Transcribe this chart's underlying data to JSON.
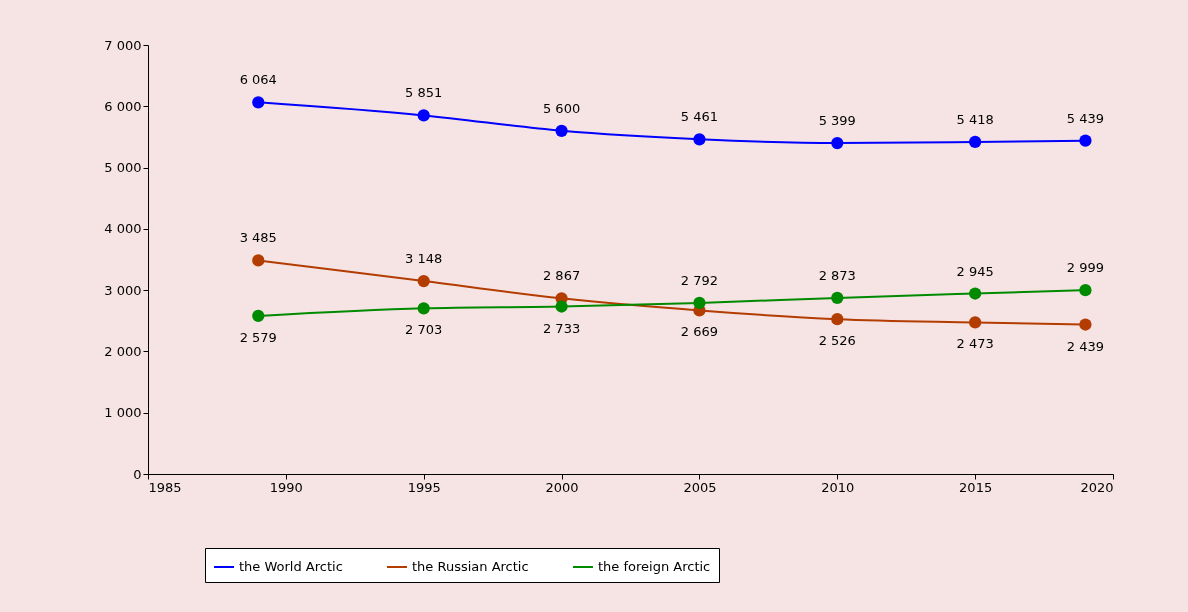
{
  "chart_data": {
    "type": "line",
    "x": [
      1989,
      1995,
      2000,
      2005,
      2010,
      2015,
      2019
    ],
    "series": [
      {
        "name": "the World Arctic",
        "color": "#0000ff",
        "values": [
          6064,
          5851,
          5600,
          5461,
          5399,
          5418,
          5439
        ],
        "value_labels": [
          "6 064",
          "5 851",
          "5 600",
          "5 461",
          "5 399",
          "5 418",
          "5 439"
        ]
      },
      {
        "name": "the Russian Arctic",
        "color": "#b33c00",
        "values": [
          3485,
          3148,
          2867,
          2669,
          2526,
          2473,
          2439
        ],
        "value_labels": [
          "3 485",
          "3 148",
          "2 867",
          "2 669",
          "2 526",
          "2 473",
          "2 439"
        ]
      },
      {
        "name": "the foreign Arctic",
        "color": "#008a00",
        "values": [
          2579,
          2703,
          2733,
          2792,
          2873,
          2945,
          2999
        ],
        "value_labels": [
          "2 579",
          "2 703",
          "2 733",
          "2 792",
          "2 873",
          "2 945",
          "2 999"
        ]
      }
    ],
    "xlim": [
      1985,
      2020
    ],
    "xticks": [
      1985,
      1990,
      1995,
      2000,
      2005,
      2010,
      2015,
      2020
    ],
    "ylim": [
      0,
      7000
    ],
    "yticks": [
      0,
      {
        "value": 1000,
        "label": "1 000"
      },
      {
        "value": 2000,
        "label": "2 000"
      },
      {
        "value": 3000,
        "label": "3 000"
      },
      {
        "value": 4000,
        "label": "4 000"
      },
      {
        "value": 5000,
        "label": "5 000"
      },
      {
        "value": 6000,
        "label": "6 000"
      },
      {
        "value": 7000,
        "label": "7 000"
      }
    ],
    "grid": false,
    "legend": "bottom",
    "marker": "circle",
    "line_style": "solid"
  }
}
